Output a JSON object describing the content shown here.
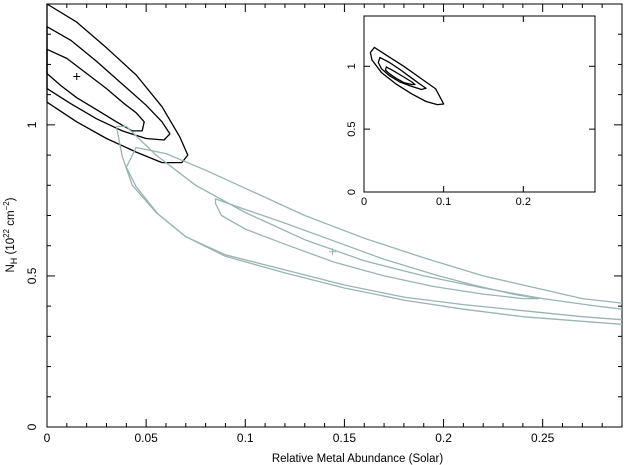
{
  "chart_data": [
    {
      "type": "contour",
      "role": "main",
      "xlabel": "Relative Metal Abundance (Solar)",
      "ylabel": "N_H (10^22 cm^-2)",
      "ylabel_parts": {
        "main": "N",
        "sub": "H",
        "open": "(10",
        "sup1": "22",
        "mid": " cm",
        "sup2": "−2",
        "close": ")"
      },
      "xlim": [
        0,
        0.29
      ],
      "ylim": [
        0,
        1.4
      ],
      "xticks": [
        0,
        0.05,
        0.1,
        0.15,
        0.2,
        0.25
      ],
      "xtick_labels": [
        "0",
        "0.05",
        "0.1",
        "0.15",
        "0.2",
        "0.25"
      ],
      "yticks": [
        0,
        0.5,
        1
      ],
      "ytick_labels": [
        "0",
        "0.5",
        "1"
      ],
      "series": [
        {
          "color": "#000000",
          "best_fit": [
            0.015,
            1.16
          ],
          "contours": [
            [
              [
                0.0,
                1.25
              ],
              [
                0.01,
                1.22
              ],
              [
                0.02,
                1.17
              ],
              [
                0.03,
                1.12
              ],
              [
                0.039,
                1.07
              ],
              [
                0.045,
                1.04
              ],
              [
                0.049,
                1.01
              ],
              [
                0.048,
                0.98
              ],
              [
                0.043,
                0.98
              ],
              [
                0.035,
                1.01
              ],
              [
                0.025,
                1.05
              ],
              [
                0.015,
                1.09
              ],
              [
                0.007,
                1.13
              ],
              [
                0.0,
                1.17
              ]
            ],
            [
              [
                0.0,
                1.325
              ],
              [
                0.012,
                1.28
              ],
              [
                0.025,
                1.21
              ],
              [
                0.038,
                1.135
              ],
              [
                0.05,
                1.065
              ],
              [
                0.058,
                1.01
              ],
              [
                0.062,
                0.97
              ],
              [
                0.059,
                0.95
              ],
              [
                0.05,
                0.955
              ],
              [
                0.038,
                0.98
              ],
              [
                0.025,
                1.02
              ],
              [
                0.012,
                1.07
              ],
              [
                0.0,
                1.12
              ]
            ],
            [
              [
                0.0,
                1.4
              ],
              [
                0.015,
                1.34
              ],
              [
                0.03,
                1.255
              ],
              [
                0.045,
                1.165
              ],
              [
                0.058,
                1.06
              ],
              [
                0.067,
                0.96
              ],
              [
                0.071,
                0.9
              ],
              [
                0.068,
                0.875
              ],
              [
                0.058,
                0.875
              ],
              [
                0.045,
                0.91
              ],
              [
                0.03,
                0.955
              ],
              [
                0.015,
                1.01
              ],
              [
                0.0,
                1.075
              ]
            ]
          ]
        },
        {
          "color": "#9ab3b3",
          "best_fit": [
            0.144,
            0.58
          ],
          "contours": [
            [
              [
                0.085,
                0.755
              ],
              [
                0.1,
                0.72
              ],
              [
                0.12,
                0.675
              ],
              [
                0.145,
                0.615
              ],
              [
                0.17,
                0.555
              ],
              [
                0.195,
                0.505
              ],
              [
                0.215,
                0.47
              ],
              [
                0.235,
                0.44
              ],
              [
                0.248,
                0.425
              ],
              [
                0.24,
                0.425
              ],
              [
                0.22,
                0.44
              ],
              [
                0.195,
                0.465
              ],
              [
                0.17,
                0.5
              ],
              [
                0.145,
                0.545
              ],
              [
                0.12,
                0.605
              ],
              [
                0.1,
                0.655
              ],
              [
                0.088,
                0.7
              ],
              [
                0.085,
                0.74
              ]
            ],
            {
              "points": [
                [
                  0.035,
                  0.995
                ],
                [
                  0.04,
                  0.995
                ],
                [
                  0.055,
                  0.9
                ],
                [
                  0.075,
                  0.8
                ],
                [
                  0.1,
                  0.71
                ],
                [
                  0.13,
                  0.62
                ],
                [
                  0.16,
                  0.55
                ],
                [
                  0.19,
                  0.5
                ],
                [
                  0.22,
                  0.46
                ],
                [
                  0.25,
                  0.425
                ],
                [
                  0.275,
                  0.402
                ],
                [
                  0.29,
                  0.39
                ]
              ],
              "closed": false
            },
            {
              "points": [
                [
                  0.29,
                  0.355
                ],
                [
                  0.27,
                  0.365
                ],
                [
                  0.24,
                  0.385
                ],
                [
                  0.21,
                  0.405
                ],
                [
                  0.18,
                  0.43
                ],
                [
                  0.15,
                  0.47
                ],
                [
                  0.12,
                  0.52
                ],
                [
                  0.09,
                  0.57
                ],
                [
                  0.07,
                  0.63
                ],
                [
                  0.055,
                  0.71
                ],
                [
                  0.043,
                  0.8
                ],
                [
                  0.038,
                  0.895
                ],
                [
                  0.035,
                  0.995
                ]
              ],
              "closed": false
            },
            {
              "points": [
                [
                  0.045,
                  0.925
                ],
                [
                  0.06,
                  0.905
                ],
                [
                  0.08,
                  0.85
                ],
                [
                  0.1,
                  0.79
                ],
                [
                  0.13,
                  0.7
                ],
                [
                  0.16,
                  0.625
                ],
                [
                  0.19,
                  0.56
                ],
                [
                  0.22,
                  0.5
                ],
                [
                  0.25,
                  0.455
                ],
                [
                  0.27,
                  0.425
                ],
                [
                  0.29,
                  0.41
                ]
              ],
              "closed": false
            },
            {
              "points": [
                [
                  0.29,
                  0.34
                ],
                [
                  0.27,
                  0.35
                ],
                [
                  0.24,
                  0.365
                ],
                [
                  0.21,
                  0.39
                ],
                [
                  0.18,
                  0.42
                ],
                [
                  0.15,
                  0.46
                ],
                [
                  0.12,
                  0.51
                ],
                [
                  0.09,
                  0.565
                ],
                [
                  0.07,
                  0.63
                ],
                [
                  0.056,
                  0.705
                ],
                [
                  0.045,
                  0.795
                ],
                [
                  0.04,
                  0.86
                ],
                [
                  0.045,
                  0.925
                ]
              ],
              "closed": false
            }
          ]
        }
      ]
    },
    {
      "type": "contour",
      "role": "inset",
      "xlim": [
        0,
        0.29
      ],
      "ylim": [
        0,
        1.4
      ],
      "xticks": [
        0,
        0.1,
        0.2
      ],
      "xtick_labels": [
        "0",
        "0.1",
        "0.2"
      ],
      "yticks": [
        0,
        0.5,
        1
      ],
      "ytick_labels": [
        "0",
        "0.5",
        "1"
      ],
      "series": [
        {
          "color": "#000000",
          "contours": [
            [
              [
                0.028,
                0.995
              ],
              [
                0.038,
                0.96
              ],
              [
                0.05,
                0.915
              ],
              [
                0.06,
                0.875
              ],
              [
                0.064,
                0.855
              ],
              [
                0.06,
                0.855
              ],
              [
                0.05,
                0.87
              ],
              [
                0.04,
                0.905
              ],
              [
                0.032,
                0.94
              ],
              [
                0.027,
                0.97
              ]
            ],
            [
              [
                0.02,
                1.07
              ],
              [
                0.032,
                1.03
              ],
              [
                0.045,
                0.975
              ],
              [
                0.06,
                0.905
              ],
              [
                0.072,
                0.85
              ],
              [
                0.078,
                0.825
              ],
              [
                0.072,
                0.815
              ],
              [
                0.06,
                0.84
              ],
              [
                0.045,
                0.875
              ],
              [
                0.032,
                0.925
              ],
              [
                0.022,
                0.98
              ],
              [
                0.018,
                1.03
              ]
            ],
            [
              [
                0.013,
                1.15
              ],
              [
                0.03,
                1.08
              ],
              [
                0.05,
                1.0
              ],
              [
                0.07,
                0.91
              ],
              [
                0.09,
                0.82
              ],
              [
                0.1,
                0.7
              ],
              [
                0.092,
                0.695
              ],
              [
                0.078,
                0.72
              ],
              [
                0.06,
                0.78
              ],
              [
                0.04,
                0.86
              ],
              [
                0.022,
                0.95
              ],
              [
                0.01,
                1.05
              ],
              [
                0.008,
                1.11
              ]
            ]
          ]
        }
      ]
    }
  ]
}
